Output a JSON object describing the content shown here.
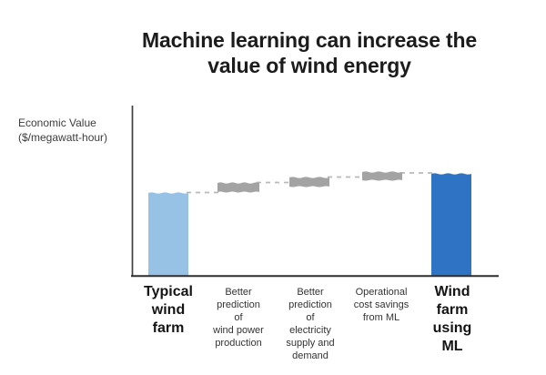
{
  "title": "Machine learning can increase the value of wind energy",
  "labels": {
    "title_display": "Machine learning can increase the\nvalue of wind energy",
    "ylabel_display": "Economic Value\n($/megawatt-hour)",
    "x_display": [
      "Typical\nwind\nfarm",
      "Better\nprediction\nof\nwind power\nproduction",
      "Better\nprediction\nof\nelectricity\nsupply and\ndemand",
      "Operational\ncost savings\nfrom ML",
      "Wind\nfarm\nusing\nML"
    ]
  },
  "chart_data": {
    "type": "bar",
    "subtype": "waterfall",
    "title": "Machine learning can increase the value of wind energy",
    "xlabel": "",
    "ylabel": "Economic Value ($/megawatt-hour)",
    "y_axis_numbers_shown": false,
    "grid": false,
    "legend": "none",
    "categories": [
      "Typical wind farm",
      "Better prediction of wind power production",
      "Better prediction of electricity supply and demand",
      "Operational cost savings from ML",
      "Wind farm using ML"
    ],
    "series": [
      {
        "label": "Typical wind farm",
        "kind": "total",
        "relative_value": 1.0
      },
      {
        "label": "Better prediction of wind power production",
        "kind": "increment",
        "relative_value": 0.08
      },
      {
        "label": "Better prediction of electricity supply and demand",
        "kind": "increment",
        "relative_value": 0.07
      },
      {
        "label": "Operational cost savings from ML",
        "kind": "increment",
        "relative_value": 0.08
      },
      {
        "label": "Wind farm using ML",
        "kind": "total",
        "relative_value": 1.23
      }
    ],
    "annotations": "Increments connected by dashed step lines; bar tops drawn with hand-sketched wavy edges",
    "colors": {
      "typical_bar": "#97C1E5",
      "ml_bar": "#2F74C4",
      "increment_bar": "#A3A3A3",
      "connector_dash": "#B9B9B9",
      "axis": "#3F3F3F",
      "title_text": "#1C1C1C",
      "label_text": "#333333"
    }
  }
}
